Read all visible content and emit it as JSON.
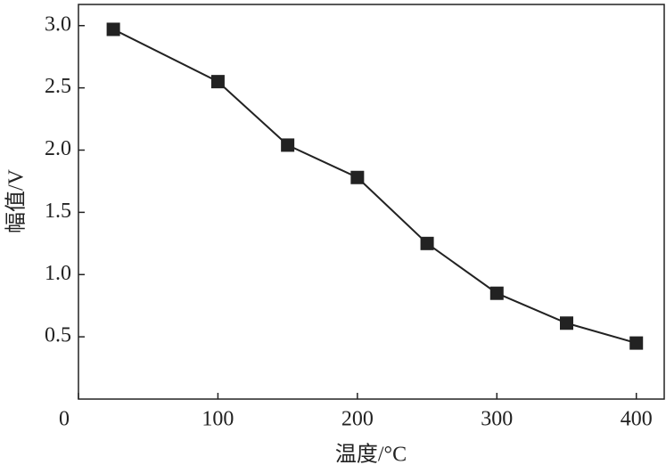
{
  "chart_data": {
    "type": "line",
    "x_label": "温度/°C",
    "y_label": "幅值/V",
    "x": [
      25,
      100,
      150,
      200,
      250,
      300,
      350,
      400
    ],
    "series": [
      {
        "color": "#222222",
        "values": [
          2.97,
          2.55,
          2.04,
          1.78,
          1.25,
          0.85,
          0.61,
          0.45
        ]
      }
    ],
    "xlim": [
      0,
      420
    ],
    "xticks": [
      0,
      100,
      200,
      300,
      400
    ],
    "ylim": [
      0,
      3.17
    ],
    "yticks": [
      {
        "value": 0.5,
        "label": "0.5"
      },
      {
        "value": 1,
        "label": "1.0"
      },
      1.5,
      {
        "value": 2,
        "label": "2.0"
      },
      2.5,
      {
        "value": 3,
        "label": "3.0"
      }
    ],
    "grid": false,
    "marker": "square"
  }
}
